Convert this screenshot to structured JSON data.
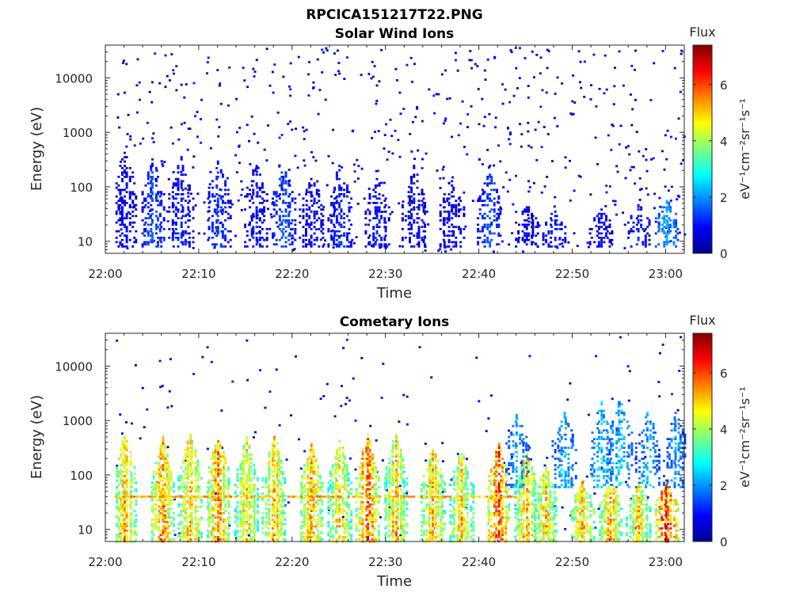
{
  "figure_title": "RPCICA151217T22.PNG",
  "chart_data": [
    {
      "type": "heatmap",
      "title": "Solar Wind Ions",
      "xlabel": "Time",
      "ylabel": "Energy (eV)",
      "x_range": [
        "22:00",
        "23:02"
      ],
      "x_ticks": [
        "22:00",
        "22:10",
        "22:20",
        "22:30",
        "22:40",
        "22:50",
        "23:00"
      ],
      "y_scale": "log",
      "y_range": [
        6,
        40000
      ],
      "y_ticks": [
        10,
        100,
        1000,
        10000
      ],
      "y_tick_labels": [
        "10",
        "100",
        "1000",
        "10000"
      ],
      "colorbar": {
        "title": "Flux",
        "label": "eV⁻¹cm⁻²sr⁻¹s⁻¹",
        "range": [
          0,
          7.4
        ],
        "ticks": [
          0,
          2,
          4,
          6
        ],
        "colormap": "jet"
      },
      "bursts": [
        {
          "t": "22:02",
          "low": 8,
          "high": 500,
          "flux": 1.0
        },
        {
          "t": "22:05",
          "low": 8,
          "high": 350,
          "flux": 1.6
        },
        {
          "t": "22:08",
          "low": 8,
          "high": 350,
          "flux": 1.3
        },
        {
          "t": "22:12",
          "low": 8,
          "high": 300,
          "flux": 1.5
        },
        {
          "t": "22:16",
          "low": 8,
          "high": 300,
          "flux": 1.2
        },
        {
          "t": "22:19",
          "low": 8,
          "high": 250,
          "flux": 1.6
        },
        {
          "t": "22:22",
          "low": 8,
          "high": 150,
          "flux": 1.0
        },
        {
          "t": "22:25",
          "low": 8,
          "high": 250,
          "flux": 1.3
        },
        {
          "t": "22:29",
          "low": 8,
          "high": 150,
          "flux": 1.2
        },
        {
          "t": "22:33",
          "low": 8,
          "high": 250,
          "flux": 1.0
        },
        {
          "t": "22:37",
          "low": 8,
          "high": 150,
          "flux": 1.0
        },
        {
          "t": "22:41",
          "low": 8,
          "high": 200,
          "flux": 1.6
        },
        {
          "t": "22:45",
          "low": 8,
          "high": 50,
          "flux": 0.9
        },
        {
          "t": "22:48",
          "low": 8,
          "high": 40,
          "flux": 1.2
        },
        {
          "t": "22:53",
          "low": 8,
          "high": 40,
          "flux": 1.0
        },
        {
          "t": "22:57",
          "low": 8,
          "high": 50,
          "flux": 1.2
        },
        {
          "t": "23:00",
          "low": 8,
          "high": 60,
          "flux": 2.2
        }
      ]
    },
    {
      "type": "heatmap",
      "title": "Cometary Ions",
      "xlabel": "Time",
      "ylabel": "Energy (eV)",
      "x_range": [
        "22:00",
        "23:02"
      ],
      "x_ticks": [
        "22:00",
        "22:10",
        "22:20",
        "22:30",
        "22:40",
        "22:50",
        "23:00"
      ],
      "y_scale": "log",
      "y_range": [
        6,
        40000
      ],
      "y_ticks": [
        10,
        100,
        1000,
        10000
      ],
      "y_tick_labels": [
        "10",
        "100",
        "1000",
        "10000"
      ],
      "colorbar": {
        "title": "Flux",
        "label": "eV⁻¹cm⁻²sr⁻¹s⁻¹",
        "range": [
          0,
          7.4
        ],
        "ticks": [
          0,
          2,
          4,
          6
        ],
        "colormap": "jet"
      },
      "band_energy": 40,
      "bursts": [
        {
          "t": "22:02",
          "low": 6,
          "high": 600,
          "flux": 5.2
        },
        {
          "t": "22:06",
          "low": 6,
          "high": 500,
          "flux": 5.6
        },
        {
          "t": "22:09",
          "low": 6,
          "high": 600,
          "flux": 5.2
        },
        {
          "t": "22:12",
          "low": 6,
          "high": 600,
          "flux": 5.6
        },
        {
          "t": "22:15",
          "low": 6,
          "high": 500,
          "flux": 5.0
        },
        {
          "t": "22:18",
          "low": 6,
          "high": 550,
          "flux": 5.2
        },
        {
          "t": "22:22",
          "low": 6,
          "high": 400,
          "flux": 5.4
        },
        {
          "t": "22:25",
          "low": 6,
          "high": 450,
          "flux": 5.0
        },
        {
          "t": "22:28",
          "low": 6,
          "high": 600,
          "flux": 6.0
        },
        {
          "t": "22:31",
          "low": 6,
          "high": 600,
          "flux": 5.2
        },
        {
          "t": "22:35",
          "low": 6,
          "high": 350,
          "flux": 5.2
        },
        {
          "t": "22:38",
          "low": 6,
          "high": 300,
          "flux": 5.0
        },
        {
          "t": "22:42",
          "low": 6,
          "high": 400,
          "flux": 6.2
        },
        {
          "t": "22:45",
          "low": 6,
          "high": 250,
          "flux": 5.2
        },
        {
          "t": "22:47",
          "low": 6,
          "high": 150,
          "flux": 5.0
        },
        {
          "t": "22:51",
          "low": 6,
          "high": 80,
          "flux": 5.2
        },
        {
          "t": "22:54",
          "low": 6,
          "high": 80,
          "flux": 5.2
        },
        {
          "t": "22:57",
          "low": 6,
          "high": 80,
          "flux": 5.0
        },
        {
          "t": "23:00",
          "low": 6,
          "high": 80,
          "flux": 6.4
        }
      ],
      "high_energy_plumes": [
        {
          "t": "22:44",
          "low": 60,
          "high": 1300,
          "flux": 2.4
        },
        {
          "t": "22:49",
          "low": 60,
          "high": 1500,
          "flux": 2.4
        },
        {
          "t": "22:53",
          "low": 60,
          "high": 2500,
          "flux": 2.6
        },
        {
          "t": "22:55",
          "low": 60,
          "high": 3000,
          "flux": 2.6
        },
        {
          "t": "22:58",
          "low": 60,
          "high": 1500,
          "flux": 2.4
        },
        {
          "t": "23:01",
          "low": 60,
          "high": 1500,
          "flux": 2.2
        }
      ]
    }
  ]
}
